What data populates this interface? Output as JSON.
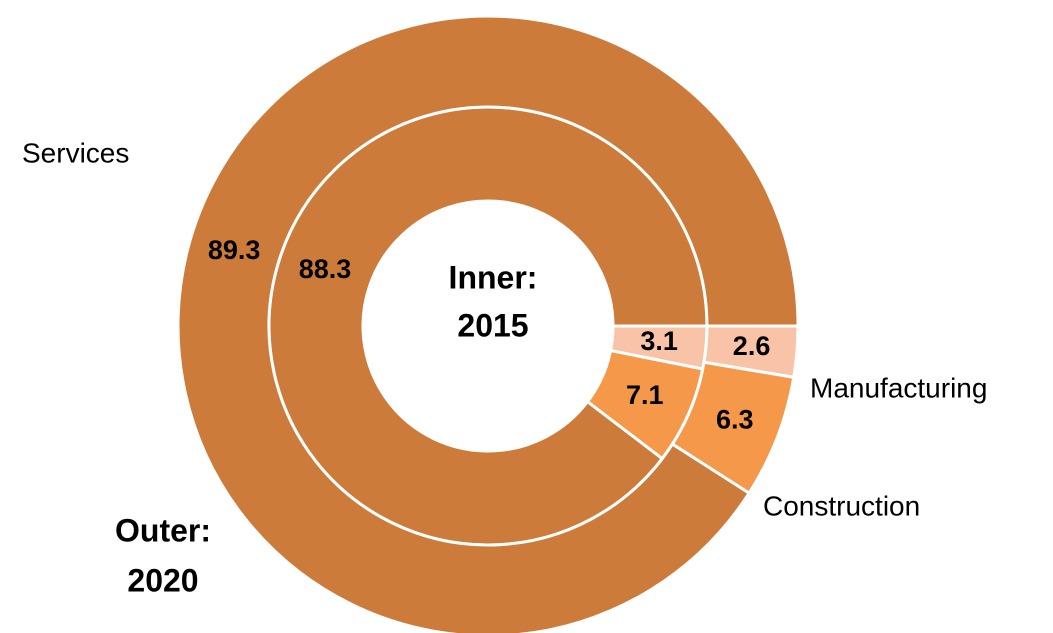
{
  "chart_data": {
    "type": "donut",
    "categories": [
      "Manufacturing",
      "Construction",
      "Services"
    ],
    "colors": [
      "#f8c3a6",
      "#f5984a",
      "#cd7b3a"
    ],
    "series": [
      {
        "label": [
          "Inner:",
          "2015"
        ],
        "values": [
          3.1,
          7.1,
          88.3
        ]
      },
      {
        "label": [
          "Outer:",
          "2020"
        ],
        "values": [
          2.6,
          6.3,
          89.3
        ]
      }
    ]
  }
}
